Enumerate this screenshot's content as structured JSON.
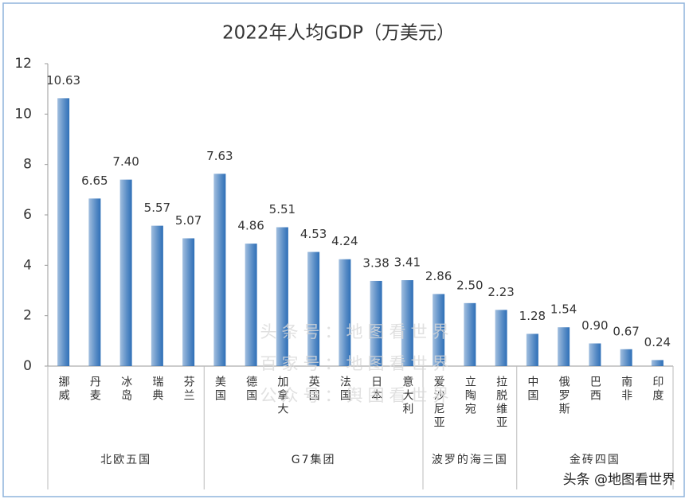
{
  "chart_data": {
    "type": "bar",
    "title": "2022年人均GDP（万美元）",
    "color": "#2e6fb7",
    "groups": [
      {
        "name": "北欧五国",
        "categories": [
          "挪威",
          "丹麦",
          "冰岛",
          "瑞典",
          "芬兰"
        ],
        "values": [
          10.63,
          6.65,
          7.4,
          5.57,
          5.07
        ],
        "value_labels": [
          "10.63",
          "6.65",
          "7.40",
          "5.57",
          "5.07"
        ]
      },
      {
        "name": "G7集团",
        "categories": [
          "美国",
          "德国",
          "加拿大",
          "英国",
          "法国",
          "日本",
          "意大利"
        ],
        "values": [
          7.63,
          4.86,
          5.51,
          4.53,
          4.24,
          3.38,
          3.41
        ],
        "value_labels": [
          "7.63",
          "4.86",
          "5.51",
          "4.53",
          "4.24",
          "3.38",
          "3.41"
        ]
      },
      {
        "name": "波罗的海三国",
        "categories": [
          "爱沙尼亚",
          "立陶宛",
          "拉脱维亚"
        ],
        "values": [
          2.86,
          2.5,
          2.23
        ],
        "value_labels": [
          "2.86",
          "2.50",
          "2.23"
        ]
      },
      {
        "name": "金砖四国",
        "categories": [
          "中国",
          "俄罗斯",
          "巴西",
          "南非",
          "印度"
        ],
        "values": [
          1.28,
          1.54,
          0.9,
          0.67,
          0.24
        ],
        "value_labels": [
          "1.28",
          "1.54",
          "0.90",
          "0.67",
          "0.24"
        ]
      }
    ],
    "ylim": [
      0,
      12
    ],
    "yticks": [
      0,
      2,
      4,
      6,
      8,
      10,
      12
    ],
    "grid": false,
    "watermarks": [
      "头条号：地图看世界",
      "百家号：地图看世界",
      "公众号：舆图看世界"
    ],
    "credit": "头条 @地图看世界"
  }
}
